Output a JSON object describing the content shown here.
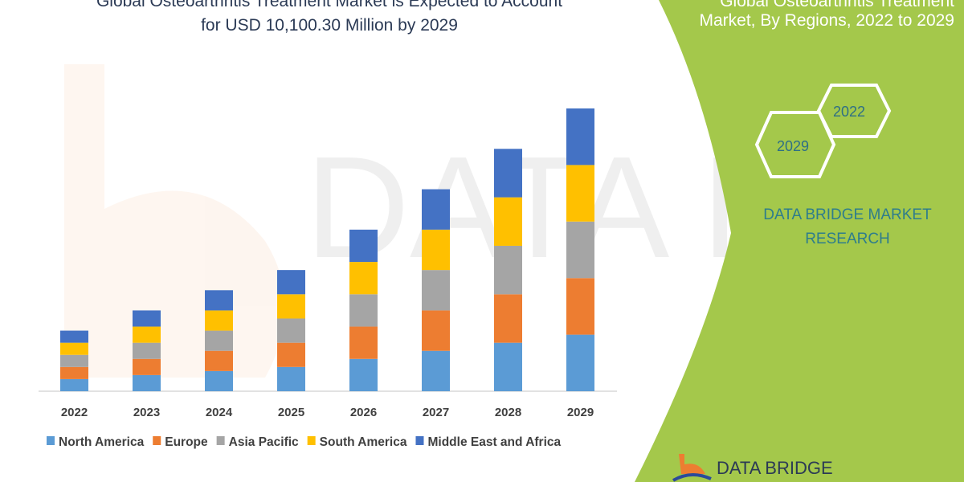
{
  "header": {
    "title_line1": "Global Osteoarthritis Treatment Market is Expected to Account",
    "title_line2": "for USD 10,100.30 Million by 2029"
  },
  "side_panel": {
    "title_line1": "Global Osteoarthritis Treatment",
    "title_line2": "Market, By Regions, 2022 to 2029",
    "hex_years": [
      "2022",
      "2029"
    ],
    "brand_line1": "DATA BRIDGE MARKET",
    "brand_line2": "RESEARCH",
    "logo_text": "DATA BRIDGE",
    "panel_color": "#a4c84b"
  },
  "chart_data": {
    "type": "bar",
    "stacked": true,
    "categories": [
      "2022",
      "2023",
      "2024",
      "2025",
      "2026",
      "2027",
      "2028",
      "2029"
    ],
    "series": [
      {
        "name": "North America",
        "color": "#5b9bd5",
        "values": [
          15,
          20,
          25,
          30,
          40,
          50,
          60,
          70
        ]
      },
      {
        "name": "Europe",
        "color": "#ed7d31",
        "values": [
          15,
          20,
          25,
          30,
          40,
          50,
          60,
          70
        ]
      },
      {
        "name": "Asia Pacific",
        "color": "#a5a5a5",
        "values": [
          15,
          20,
          25,
          30,
          40,
          50,
          60,
          70
        ]
      },
      {
        "name": "South America",
        "color": "#ffc000",
        "values": [
          15,
          20,
          25,
          30,
          40,
          50,
          60,
          70
        ]
      },
      {
        "name": "Middle East and Africa",
        "color": "#4472c4",
        "values": [
          15,
          20,
          25,
          30,
          40,
          50,
          60,
          70
        ]
      }
    ],
    "ylim": [
      0,
      350
    ],
    "y_axis_shown": false,
    "grid": false,
    "legend": "bottom"
  }
}
